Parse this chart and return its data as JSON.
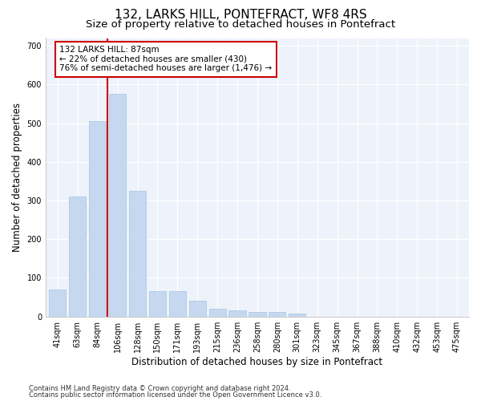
{
  "title": "132, LARKS HILL, PONTEFRACT, WF8 4RS",
  "subtitle": "Size of property relative to detached houses in Pontefract",
  "xlabel": "Distribution of detached houses by size in Pontefract",
  "ylabel": "Number of detached properties",
  "categories": [
    "41sqm",
    "63sqm",
    "84sqm",
    "106sqm",
    "128sqm",
    "150sqm",
    "171sqm",
    "193sqm",
    "215sqm",
    "236sqm",
    "258sqm",
    "280sqm",
    "301sqm",
    "323sqm",
    "345sqm",
    "367sqm",
    "388sqm",
    "410sqm",
    "432sqm",
    "453sqm",
    "475sqm"
  ],
  "values": [
    70,
    310,
    505,
    575,
    325,
    65,
    65,
    40,
    20,
    15,
    12,
    12,
    8,
    0,
    0,
    0,
    0,
    0,
    0,
    0,
    0
  ],
  "bar_color": "#c5d8f0",
  "bar_edge_color": "#a8c4e0",
  "vline_x": 2.5,
  "vline_color": "#cc0000",
  "annotation_text": "132 LARKS HILL: 87sqm\n← 22% of detached houses are smaller (430)\n76% of semi-detached houses are larger (1,476) →",
  "annotation_box_color": "#ffffff",
  "annotation_box_edge": "#cc0000",
  "ylim": [
    0,
    720
  ],
  "yticks": [
    0,
    100,
    200,
    300,
    400,
    500,
    600,
    700
  ],
  "background_color": "#edf2fb",
  "footer_line1": "Contains HM Land Registry data © Crown copyright and database right 2024.",
  "footer_line2": "Contains public sector information licensed under the Open Government Licence v3.0.",
  "title_fontsize": 11,
  "subtitle_fontsize": 9.5,
  "tick_fontsize": 7,
  "ylabel_fontsize": 8.5,
  "xlabel_fontsize": 8.5,
  "footer_fontsize": 6,
  "annotation_fontsize": 7.5
}
